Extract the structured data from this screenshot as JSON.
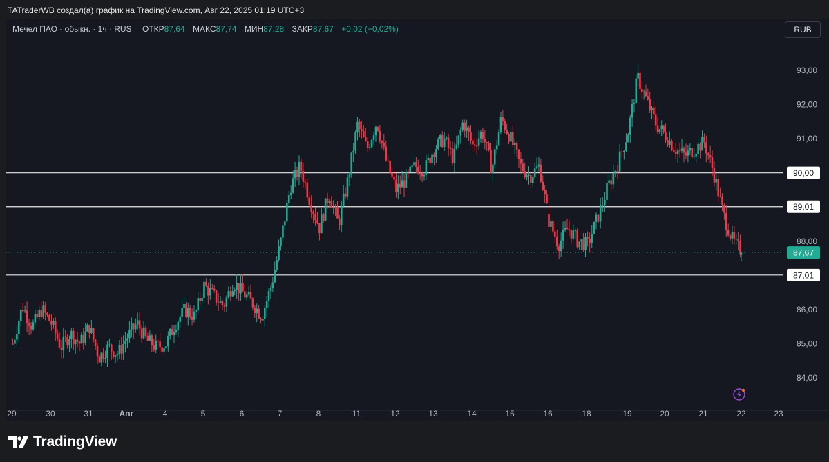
{
  "header": {
    "attribution": "TATraderWB создал(а) график на TradingView.com, Авг 22, 2025 01:19 UTC+3"
  },
  "legend": {
    "symbol": "Мечел ПАО - обыкн. · 1ч · RUS",
    "open_label": "ОТКР",
    "open_value": "87,64",
    "high_label": "МАКС",
    "high_value": "87,74",
    "low_label": "МИН",
    "low_value": "87,28",
    "close_label": "ЗАКР",
    "close_value": "87,67",
    "change": "+0,02 (+0,02%)"
  },
  "currency_button": "RUB",
  "brand": "TradingView",
  "icons": {
    "logo": "tradingview-logo-icon",
    "alert": "lightning-alert-icon"
  },
  "colors": {
    "up": "#22ab94",
    "down": "#f23645",
    "background": "#151821",
    "last_price": "#22ab94"
  },
  "chart_data": {
    "type": "candlestick",
    "symbol": "Мечел ПАО - обыкн.",
    "timeframe": "1ч",
    "currency": "RUB",
    "ylim": [
      83.6,
      94.0
    ],
    "y_ticks": [
      "84,00",
      "85,00",
      "86,00",
      "87,00",
      "88,00",
      "89,00",
      "90,00",
      "91,00",
      "92,00",
      "93,00"
    ],
    "x_ticks": [
      "29",
      "30",
      "31",
      "Авг",
      "4",
      "5",
      "6",
      "7",
      "8",
      "11",
      "12",
      "13",
      "14",
      "15",
      "16",
      "18",
      "19",
      "20",
      "21",
      "22",
      "23"
    ],
    "horizontal_levels": [
      {
        "value": 90.0,
        "label": "90,00"
      },
      {
        "value": 89.01,
        "label": "89,01"
      },
      {
        "value": 87.01,
        "label": "87,01"
      }
    ],
    "last_price": {
      "value": 87.67,
      "label": "87,67"
    },
    "session_path": [
      [
        29,
        85.0
      ],
      [
        29,
        86.1
      ],
      [
        29,
        85.5
      ],
      [
        29,
        86.0
      ],
      [
        30,
        85.6
      ],
      [
        30,
        84.9
      ],
      [
        30,
        85.3
      ],
      [
        30,
        85.0
      ],
      [
        31,
        85.5
      ],
      [
        31,
        84.6
      ],
      [
        31,
        84.9
      ],
      [
        31,
        84.7
      ],
      [
        1,
        85.2
      ],
      [
        1,
        85.6
      ],
      [
        1,
        85.1
      ],
      [
        1,
        84.9
      ],
      [
        4,
        85.0
      ],
      [
        4,
        85.6
      ],
      [
        4,
        86.0
      ],
      [
        4,
        85.8
      ],
      [
        5,
        86.7
      ],
      [
        5,
        86.4
      ],
      [
        5,
        86.1
      ],
      [
        5,
        86.8
      ],
      [
        6,
        86.5
      ],
      [
        6,
        86.2
      ],
      [
        6,
        85.8
      ],
      [
        6,
        86.7
      ],
      [
        7,
        88.0
      ],
      [
        7,
        89.6
      ],
      [
        7,
        90.2
      ],
      [
        7,
        89.2
      ],
      [
        8,
        88.4
      ],
      [
        8,
        89.4
      ],
      [
        8,
        88.5
      ],
      [
        8,
        89.8
      ],
      [
        11,
        91.4
      ],
      [
        11,
        90.7
      ],
      [
        11,
        91.5
      ],
      [
        11,
        90.3
      ],
      [
        12,
        89.5
      ],
      [
        12,
        89.8
      ],
      [
        12,
        90.2
      ],
      [
        12,
        90.1
      ],
      [
        13,
        90.7
      ],
      [
        13,
        91.0
      ],
      [
        13,
        90.4
      ],
      [
        13,
        91.5
      ],
      [
        14,
        90.8
      ],
      [
        14,
        91.2
      ],
      [
        14,
        90.1
      ],
      [
        14,
        91.6
      ],
      [
        15,
        91.0
      ],
      [
        15,
        90.2
      ],
      [
        15,
        89.9
      ],
      [
        15,
        90.2
      ],
      [
        16,
        88.6
      ],
      [
        16,
        87.9
      ],
      [
        16,
        88.4
      ],
      [
        16,
        88.0
      ],
      [
        18,
        87.9
      ],
      [
        18,
        88.7
      ],
      [
        18,
        89.6
      ],
      [
        18,
        90.3
      ],
      [
        19,
        91.2
      ],
      [
        19,
        92.8
      ],
      [
        19,
        92.1
      ],
      [
        19,
        91.4
      ],
      [
        20,
        91.1
      ],
      [
        20,
        90.7
      ],
      [
        20,
        90.5
      ],
      [
        20,
        90.7
      ],
      [
        21,
        90.9
      ],
      [
        21,
        90.0
      ],
      [
        21,
        88.8
      ],
      [
        21,
        88.0
      ],
      [
        22,
        87.67
      ]
    ]
  }
}
